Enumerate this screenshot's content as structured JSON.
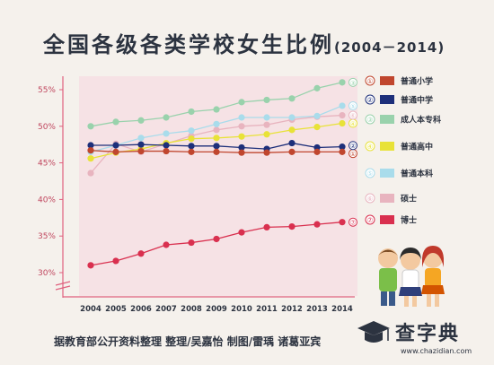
{
  "title": {
    "main": "全国各级各类学校女生比例",
    "years": "(2004－2014)"
  },
  "footer": "据教育部公开资料整理 整理/吴嘉怡 制图/雷瑀 诸葛亚宾",
  "logo": {
    "text": "查字典",
    "url": "www.chazidian.com"
  },
  "chart_data": {
    "type": "line",
    "x": [
      "2004",
      "2005",
      "2006",
      "2007",
      "2008",
      "2009",
      "2010",
      "2011",
      "2012",
      "2013",
      "2014"
    ],
    "yticks": [
      "30%",
      "35%",
      "40%",
      "45%",
      "50%",
      "55%"
    ],
    "ylim": [
      30,
      57
    ],
    "grid": false,
    "legend_position": "right",
    "series": [
      {
        "name": "普通小学",
        "marker": "①",
        "color": "#c0462e",
        "values": [
          46.7,
          46.5,
          46.6,
          46.6,
          46.5,
          46.5,
          46.4,
          46.4,
          46.5,
          46.5,
          46.5
        ]
      },
      {
        "name": "普通中学",
        "marker": "②",
        "color": "#1d2f7a",
        "values": [
          47.4,
          47.4,
          47.5,
          47.4,
          47.3,
          47.3,
          47.1,
          46.9,
          47.7,
          47.1,
          47.2
        ]
      },
      {
        "name": "成人本专科",
        "marker": "③",
        "color": "#99d2ac",
        "values": [
          50.0,
          50.6,
          50.8,
          51.2,
          52.0,
          52.3,
          53.3,
          53.6,
          53.8,
          55.2,
          56.0
        ]
      },
      {
        "name": "普通高中",
        "marker": "④",
        "color": "#e8e238",
        "values": [
          45.6,
          46.4,
          46.9,
          47.7,
          48.3,
          48.4,
          48.6,
          48.9,
          49.5,
          49.9,
          50.4
        ]
      },
      {
        "name": "普通本科",
        "marker": "⑤",
        "color": "#a9dceb",
        "values": [
          46.5,
          47.4,
          48.4,
          49.0,
          49.4,
          50.3,
          51.2,
          51.2,
          51.2,
          51.4,
          52.8
        ]
      },
      {
        "name": "硕士",
        "marker": "⑥",
        "color": "#e8b4bf",
        "values": [
          43.6,
          47.6,
          46.5,
          47.6,
          48.7,
          49.5,
          50.0,
          50.2,
          50.9,
          51.3,
          51.5
        ]
      },
      {
        "name": "博士",
        "marker": "⑦",
        "color": "#d9304f",
        "values": [
          31.0,
          31.6,
          32.6,
          33.8,
          34.1,
          34.6,
          35.5,
          36.2,
          36.3,
          36.6,
          36.9
        ]
      }
    ]
  }
}
